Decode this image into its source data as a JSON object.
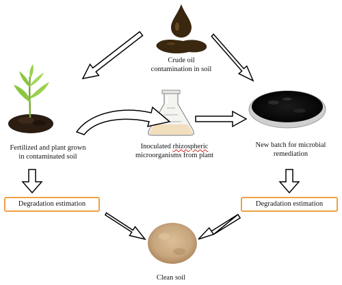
{
  "nodes": {
    "crude_oil": {
      "line1": "Crude oil",
      "line2": "contamination in soil"
    },
    "plant": {
      "line1": "Fertilized and plant grown",
      "line2": "in contaminated soil"
    },
    "flask": {
      "line1_a": "Inoculated ",
      "line1_b": "rhizospheric",
      "line2": "microorganisms from plant"
    },
    "batch": {
      "line1": "New batch for microbial",
      "line2": "remediation"
    },
    "clean_soil": {
      "label": "Clean soil"
    }
  },
  "boxes": {
    "left": "Degradation estimation",
    "right": "Degradation estimation"
  },
  "colors": {
    "box_border": "#f0a040",
    "arrow_stroke": "#000000",
    "oil": "#3a2710",
    "soil_dark": "#2b1d12",
    "plant_green": "#8cc63f",
    "clean_soil": "#c8a67e"
  }
}
